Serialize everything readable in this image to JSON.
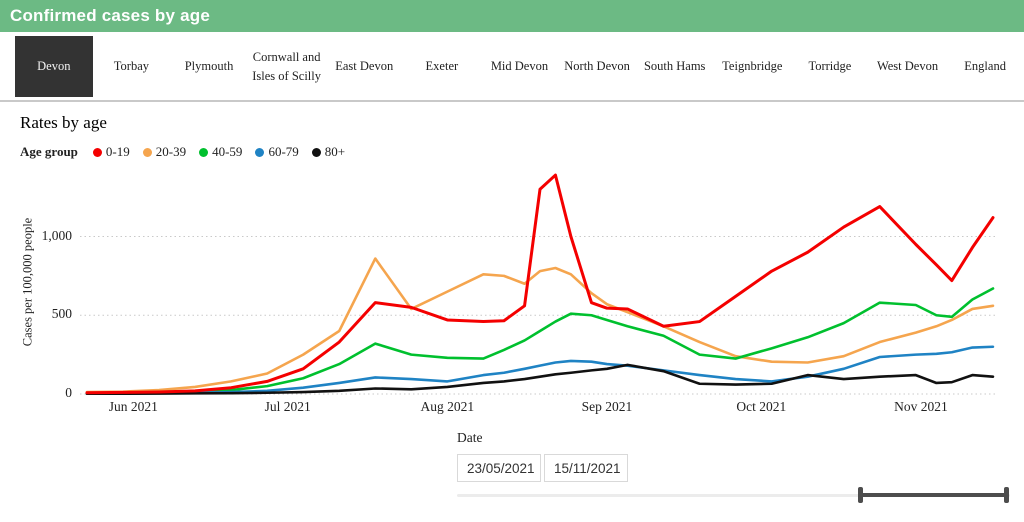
{
  "header": {
    "title": "Confirmed cases by age",
    "bg_color": "#6cba84"
  },
  "tabs": {
    "items": [
      {
        "label": "Devon",
        "selected": true
      },
      {
        "label": "Torbay",
        "selected": false
      },
      {
        "label": "Plymouth",
        "selected": false
      },
      {
        "label": "Cornwall and Isles of Scilly",
        "selected": false
      },
      {
        "label": "East Devon",
        "selected": false
      },
      {
        "label": "Exeter",
        "selected": false
      },
      {
        "label": "Mid Devon",
        "selected": false
      },
      {
        "label": "North Devon",
        "selected": false
      },
      {
        "label": "South Hams",
        "selected": false
      },
      {
        "label": "Teignbridge",
        "selected": false
      },
      {
        "label": "Torridge",
        "selected": false
      },
      {
        "label": "West Devon",
        "selected": false
      },
      {
        "label": "England",
        "selected": false
      }
    ],
    "active_tab_bg": "#333333"
  },
  "section": {
    "title": "Rates by age"
  },
  "legend": {
    "title": "Age group"
  },
  "controls": {
    "date_label": "Date",
    "date_from": "23/05/2021",
    "date_to": "15/11/2021"
  },
  "chart_data": {
    "type": "line",
    "title": "Rates by age",
    "xlabel": "",
    "ylabel": "Cases per 100,000 people",
    "legend_title": "Age group",
    "legend_position": "top-left",
    "grid": "horizontal-dotted",
    "ylim": [
      0,
      1420
    ],
    "yticks": [
      0,
      500,
      1000
    ],
    "ytick_labels": [
      "0",
      "500",
      "1,000"
    ],
    "x_range": [
      "23/05/2021",
      "15/11/2021"
    ],
    "x_tick_labels": [
      "Jun 2021",
      "Jul 2021",
      "Aug 2021",
      "Sep 2021",
      "Oct 2021",
      "Nov 2021"
    ],
    "x_tick_days": [
      9,
      39,
      70,
      101,
      131,
      162
    ],
    "days_since_start": [
      0,
      7,
      14,
      21,
      28,
      35,
      42,
      49,
      56,
      63,
      70,
      77,
      81,
      85,
      88,
      91,
      94,
      98,
      101,
      105,
      112,
      119,
      126,
      133,
      140,
      147,
      154,
      161,
      165,
      168,
      172,
      176
    ],
    "series": [
      {
        "name": "0-19",
        "color": "#f40000",
        "values": [
          8,
          10,
          13,
          20,
          40,
          80,
          160,
          330,
          580,
          550,
          470,
          460,
          465,
          560,
          1300,
          1390,
          1000,
          580,
          545,
          540,
          430,
          460,
          620,
          780,
          900,
          1060,
          1190,
          950,
          820,
          720,
          930,
          1120
        ]
      },
      {
        "name": "20-39",
        "color": "#f5a54e",
        "values": [
          12,
          15,
          25,
          45,
          80,
          130,
          250,
          400,
          860,
          540,
          650,
          760,
          750,
          700,
          780,
          800,
          760,
          640,
          570,
          520,
          430,
          330,
          240,
          205,
          200,
          240,
          330,
          390,
          430,
          470,
          540,
          560
        ]
      },
      {
        "name": "40-59",
        "color": "#00c02e",
        "values": [
          5,
          6,
          10,
          15,
          25,
          50,
          100,
          190,
          320,
          250,
          230,
          225,
          280,
          340,
          400,
          460,
          510,
          500,
          470,
          430,
          370,
          250,
          225,
          290,
          360,
          450,
          580,
          565,
          500,
          490,
          600,
          670
        ]
      },
      {
        "name": "60-79",
        "color": "#1f83c4",
        "values": [
          2,
          3,
          5,
          8,
          12,
          20,
          40,
          70,
          105,
          95,
          80,
          120,
          135,
          160,
          180,
          200,
          210,
          205,
          190,
          180,
          150,
          120,
          95,
          80,
          110,
          160,
          235,
          250,
          255,
          265,
          295,
          300
        ]
      },
      {
        "name": "80+",
        "color": "#111111",
        "values": [
          2,
          2,
          3,
          4,
          5,
          8,
          12,
          20,
          35,
          30,
          45,
          70,
          80,
          95,
          110,
          125,
          135,
          150,
          160,
          185,
          145,
          65,
          60,
          65,
          120,
          95,
          110,
          120,
          70,
          75,
          120,
          110
        ]
      }
    ]
  }
}
